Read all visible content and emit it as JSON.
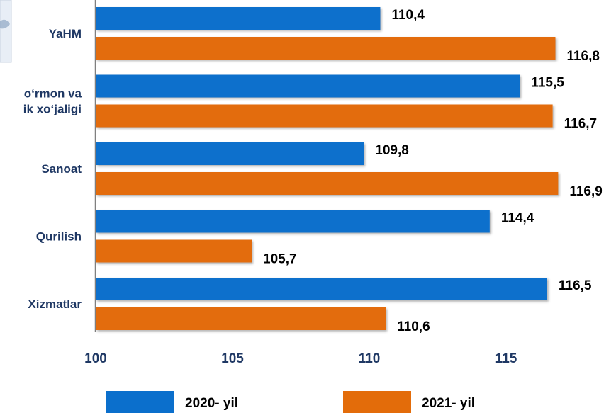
{
  "chart_data": {
    "type": "bar",
    "orientation": "horizontal",
    "categories": [
      "YaHM",
      "Qishloq, o‘rmon va baliqchilik xo‘jaligi",
      "Sanoat",
      "Qurilish",
      "Xizmatlar"
    ],
    "category_visible_lines": [
      [
        "YaHM"
      ],
      [
        "o‘rmon va",
        "ik xo‘jaligi"
      ],
      [
        "Sanoat"
      ],
      [
        "Qurilish"
      ],
      [
        "Xizmatlar"
      ]
    ],
    "series": [
      {
        "name": "2020- yil",
        "color": "#0b6fcc",
        "values": [
          110.4,
          115.5,
          109.8,
          114.4,
          116.5
        ],
        "labels": [
          "110,4",
          "115,5",
          "109,8",
          "114,4",
          "116,5"
        ]
      },
      {
        "name": "2021- yil",
        "color": "#e36c0a",
        "values": [
          116.8,
          116.7,
          116.9,
          105.7,
          110.6
        ],
        "labels": [
          "116,8",
          "116,7",
          "116,9",
          "105,7",
          "110,6"
        ]
      }
    ],
    "xlim": [
      100,
      119.5
    ],
    "xticks": [
      100,
      105,
      110,
      115
    ],
    "xtick_labels": [
      "100",
      "105",
      "110",
      "115"
    ],
    "legend_position": "bottom",
    "grid": false
  }
}
